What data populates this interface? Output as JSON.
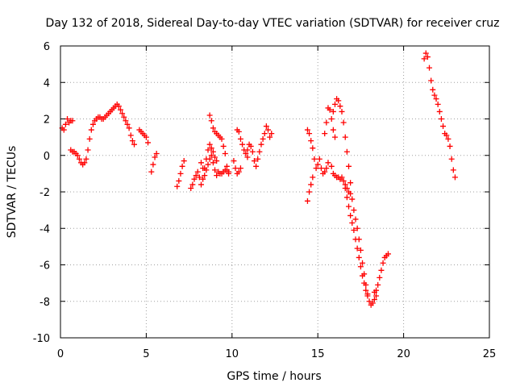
{
  "chart_data": {
    "type": "scatter",
    "title": "Day 132 of 2018, Sidereal Day-to-day VTEC variation (SDTVAR) for receiver cruz",
    "xlabel": "GPS time / hours",
    "ylabel": "SDTVAR / TECUs",
    "xlim": [
      0,
      25
    ],
    "ylim": [
      -10,
      6
    ],
    "x_ticks": [
      0,
      5,
      10,
      15,
      20,
      25
    ],
    "y_ticks": [
      -10,
      -8,
      -6,
      -4,
      -2,
      0,
      2,
      4,
      6
    ],
    "x_tick_labels": [
      "0",
      "5",
      "10",
      "15",
      "20",
      "25"
    ],
    "y_tick_labels": [
      "-10",
      "-8",
      "-6",
      "-4",
      "-2",
      "0",
      "2",
      "4",
      "6"
    ],
    "grid": true,
    "marker": "+",
    "colors": {
      "series": "#ff0000",
      "grid": "#a0a0a0",
      "axis": "#000000"
    },
    "series": [
      {
        "name": "segment-1",
        "points": [
          [
            0.1,
            1.5
          ],
          [
            0.2,
            1.4
          ],
          [
            0.3,
            1.7
          ],
          [
            0.4,
            2.0
          ],
          [
            0.5,
            1.8
          ],
          [
            0.6,
            1.9
          ],
          [
            0.7,
            1.9
          ]
        ]
      },
      {
        "name": "segment-2",
        "points": [
          [
            0.6,
            0.3
          ],
          [
            0.7,
            0.2
          ],
          [
            0.8,
            0.2
          ],
          [
            0.9,
            0.1
          ],
          [
            1.0,
            0.0
          ],
          [
            1.1,
            -0.2
          ],
          [
            1.2,
            -0.4
          ],
          [
            1.3,
            -0.5
          ],
          [
            1.4,
            -0.4
          ],
          [
            1.5,
            -0.2
          ],
          [
            1.6,
            0.3
          ],
          [
            1.7,
            0.9
          ],
          [
            1.8,
            1.4
          ],
          [
            1.9,
            1.7
          ],
          [
            2.0,
            1.9
          ],
          [
            2.1,
            2.0
          ],
          [
            2.2,
            2.1
          ],
          [
            2.3,
            2.1
          ],
          [
            2.4,
            2.0
          ],
          [
            2.5,
            2.0
          ],
          [
            2.6,
            2.1
          ],
          [
            2.7,
            2.2
          ],
          [
            2.8,
            2.3
          ],
          [
            2.9,
            2.4
          ],
          [
            3.0,
            2.5
          ],
          [
            3.1,
            2.6
          ],
          [
            3.2,
            2.7
          ],
          [
            3.3,
            2.8
          ],
          [
            3.4,
            2.7
          ],
          [
            3.5,
            2.5
          ],
          [
            3.6,
            2.3
          ],
          [
            3.7,
            2.1
          ],
          [
            3.8,
            1.9
          ],
          [
            3.9,
            1.7
          ],
          [
            4.0,
            1.5
          ],
          [
            4.1,
            1.1
          ],
          [
            4.2,
            0.8
          ],
          [
            4.3,
            0.6
          ]
        ]
      },
      {
        "name": "segment-3",
        "points": [
          [
            4.6,
            1.4
          ],
          [
            4.7,
            1.3
          ],
          [
            4.8,
            1.2
          ],
          [
            4.9,
            1.1
          ],
          [
            5.0,
            1.0
          ],
          [
            5.1,
            0.7
          ]
        ]
      },
      {
        "name": "segment-4",
        "points": [
          [
            5.3,
            -0.9
          ],
          [
            5.4,
            -0.5
          ],
          [
            5.5,
            -0.1
          ],
          [
            5.6,
            0.1
          ]
        ]
      },
      {
        "name": "segment-5",
        "points": [
          [
            6.8,
            -1.7
          ],
          [
            6.9,
            -1.4
          ],
          [
            7.0,
            -1.0
          ],
          [
            7.1,
            -0.6
          ],
          [
            7.2,
            -0.3
          ]
        ]
      },
      {
        "name": "segment-6",
        "points": [
          [
            7.6,
            -1.8
          ],
          [
            7.7,
            -1.6
          ],
          [
            7.8,
            -1.3
          ],
          [
            7.9,
            -1.1
          ],
          [
            8.0,
            -0.9
          ],
          [
            8.1,
            -1.2
          ],
          [
            8.2,
            -1.6
          ],
          [
            8.3,
            -1.3
          ],
          [
            8.4,
            -0.7
          ],
          [
            8.5,
            -0.2
          ],
          [
            8.6,
            0.3
          ],
          [
            8.7,
            0.6
          ],
          [
            8.8,
            0.4
          ],
          [
            8.9,
            0.2
          ],
          [
            9.0,
            -0.1
          ],
          [
            9.1,
            -0.3
          ]
        ]
      },
      {
        "name": "segment-7",
        "points": [
          [
            8.7,
            2.2
          ],
          [
            8.8,
            1.9
          ],
          [
            8.9,
            1.5
          ],
          [
            9.0,
            1.3
          ],
          [
            9.1,
            1.2
          ],
          [
            9.2,
            1.1
          ],
          [
            9.3,
            1.0
          ],
          [
            9.4,
            0.9
          ],
          [
            9.5,
            0.5
          ],
          [
            9.6,
            0.1
          ],
          [
            9.7,
            -0.6
          ],
          [
            9.8,
            -1.0
          ]
        ]
      },
      {
        "name": "segment-8",
        "points": [
          [
            8.2,
            -0.4
          ],
          [
            8.3,
            -0.7
          ],
          [
            8.4,
            -1.1
          ],
          [
            8.5,
            -0.8
          ],
          [
            8.6,
            -0.5
          ],
          [
            8.7,
            -0.2
          ],
          [
            8.8,
            0.0
          ],
          [
            8.9,
            -0.4
          ],
          [
            9.0,
            -0.8
          ],
          [
            9.1,
            -1.1
          ],
          [
            9.2,
            -0.9
          ],
          [
            9.3,
            -1.0
          ],
          [
            9.4,
            -1.0
          ],
          [
            9.5,
            -0.9
          ],
          [
            9.6,
            -0.8
          ],
          [
            9.7,
            -0.8
          ],
          [
            9.8,
            -0.9
          ]
        ]
      },
      {
        "name": "segment-9",
        "points": [
          [
            10.3,
            1.4
          ],
          [
            10.4,
            1.3
          ],
          [
            10.5,
            0.9
          ],
          [
            10.6,
            0.6
          ],
          [
            10.7,
            0.3
          ],
          [
            10.8,
            0.1
          ],
          [
            10.9,
            -0.1
          ]
        ]
      },
      {
        "name": "segment-10",
        "points": [
          [
            10.1,
            -0.3
          ],
          [
            10.2,
            -0.7
          ],
          [
            10.3,
            -1.0
          ],
          [
            10.4,
            -0.9
          ],
          [
            10.5,
            -0.7
          ]
        ]
      },
      {
        "name": "segment-11",
        "points": [
          [
            10.9,
            0.3
          ],
          [
            11.0,
            0.6
          ],
          [
            11.1,
            0.5
          ],
          [
            11.2,
            0.2
          ],
          [
            11.3,
            -0.3
          ],
          [
            11.4,
            -0.6
          ],
          [
            11.5,
            -0.2
          ],
          [
            11.6,
            0.2
          ],
          [
            11.7,
            0.6
          ],
          [
            11.8,
            0.9
          ],
          [
            11.9,
            1.2
          ],
          [
            12.0,
            1.6
          ],
          [
            12.1,
            1.4
          ],
          [
            12.2,
            1.0
          ],
          [
            12.3,
            1.2
          ]
        ]
      },
      {
        "name": "segment-12",
        "points": [
          [
            14.4,
            1.4
          ],
          [
            14.5,
            1.2
          ],
          [
            14.6,
            0.8
          ],
          [
            14.7,
            0.4
          ],
          [
            14.8,
            -0.2
          ],
          [
            14.9,
            -0.7
          ],
          [
            15.0,
            -0.5
          ],
          [
            15.1,
            -0.2
          ],
          [
            15.2,
            -0.7
          ],
          [
            15.3,
            -1.0
          ],
          [
            15.4,
            -0.9
          ],
          [
            15.5,
            -0.7
          ],
          [
            15.6,
            -0.4
          ]
        ]
      },
      {
        "name": "segment-13",
        "points": [
          [
            14.4,
            -2.5
          ],
          [
            14.5,
            -2.0
          ],
          [
            14.6,
            -1.6
          ],
          [
            14.7,
            -1.2
          ]
        ]
      },
      {
        "name": "segment-14",
        "points": [
          [
            15.4,
            1.2
          ],
          [
            15.5,
            1.8
          ],
          [
            15.6,
            2.6
          ],
          [
            15.7,
            2.5
          ],
          [
            15.8,
            2.0
          ],
          [
            15.9,
            1.4
          ],
          [
            16.0,
            1.0
          ]
        ]
      },
      {
        "name": "segment-15",
        "points": [
          [
            15.8,
            -0.6
          ],
          [
            15.9,
            -1.0
          ],
          [
            16.0,
            -1.1
          ],
          [
            16.1,
            -1.2
          ],
          [
            16.2,
            -1.2
          ],
          [
            16.3,
            -1.3
          ],
          [
            16.4,
            -1.2
          ],
          [
            16.5,
            -1.4
          ],
          [
            16.6,
            -1.6
          ],
          [
            16.7,
            -1.8
          ],
          [
            16.8,
            -2.0
          ],
          [
            16.9,
            -2.1
          ]
        ]
      },
      {
        "name": "segment-16",
        "points": [
          [
            15.9,
            2.4
          ],
          [
            16.0,
            2.8
          ],
          [
            16.1,
            3.1
          ],
          [
            16.2,
            3.0
          ],
          [
            16.3,
            2.7
          ],
          [
            16.4,
            2.4
          ],
          [
            16.5,
            1.8
          ],
          [
            16.6,
            1.0
          ],
          [
            16.7,
            0.2
          ],
          [
            16.8,
            -0.6
          ],
          [
            16.9,
            -1.5
          ],
          [
            17.0,
            -2.4
          ],
          [
            17.1,
            -3.0
          ],
          [
            17.2,
            -3.5
          ],
          [
            17.3,
            -4.0
          ],
          [
            17.4,
            -4.6
          ],
          [
            17.5,
            -5.2
          ],
          [
            17.6,
            -5.9
          ],
          [
            17.7,
            -6.5
          ],
          [
            17.8,
            -7.1
          ],
          [
            17.9,
            -7.6
          ],
          [
            18.0,
            -8.0
          ],
          [
            18.1,
            -8.2
          ],
          [
            18.2,
            -8.1
          ],
          [
            18.3,
            -7.9
          ],
          [
            18.4,
            -7.7
          ]
        ]
      },
      {
        "name": "segment-17",
        "points": [
          [
            16.6,
            -1.8
          ],
          [
            16.7,
            -2.3
          ],
          [
            16.8,
            -2.8
          ],
          [
            16.9,
            -3.3
          ],
          [
            17.0,
            -3.7
          ],
          [
            17.1,
            -4.1
          ],
          [
            17.2,
            -4.6
          ],
          [
            17.3,
            -5.1
          ],
          [
            17.4,
            -5.6
          ],
          [
            17.5,
            -6.1
          ],
          [
            17.6,
            -6.6
          ],
          [
            17.7,
            -7.0
          ],
          [
            17.8,
            -7.4
          ],
          [
            17.9,
            -7.7
          ]
        ]
      },
      {
        "name": "segment-18",
        "points": [
          [
            18.3,
            -7.5
          ],
          [
            18.4,
            -7.4
          ],
          [
            18.5,
            -7.1
          ],
          [
            18.6,
            -6.7
          ],
          [
            18.7,
            -6.3
          ],
          [
            18.8,
            -5.9
          ],
          [
            18.9,
            -5.6
          ],
          [
            19.0,
            -5.5
          ],
          [
            19.1,
            -5.4
          ]
        ]
      },
      {
        "name": "segment-19",
        "points": [
          [
            21.2,
            5.3
          ],
          [
            21.3,
            5.6
          ],
          [
            21.4,
            5.4
          ],
          [
            21.5,
            4.8
          ],
          [
            21.6,
            4.1
          ],
          [
            21.7,
            3.6
          ],
          [
            21.8,
            3.3
          ],
          [
            21.9,
            3.1
          ],
          [
            22.0,
            2.8
          ],
          [
            22.1,
            2.4
          ],
          [
            22.2,
            2.0
          ],
          [
            22.3,
            1.6
          ],
          [
            22.4,
            1.2
          ],
          [
            22.5,
            1.1
          ],
          [
            22.6,
            0.9
          ],
          [
            22.7,
            0.5
          ],
          [
            22.8,
            -0.2
          ],
          [
            22.9,
            -0.8
          ],
          [
            23.0,
            -1.2
          ]
        ]
      }
    ]
  }
}
